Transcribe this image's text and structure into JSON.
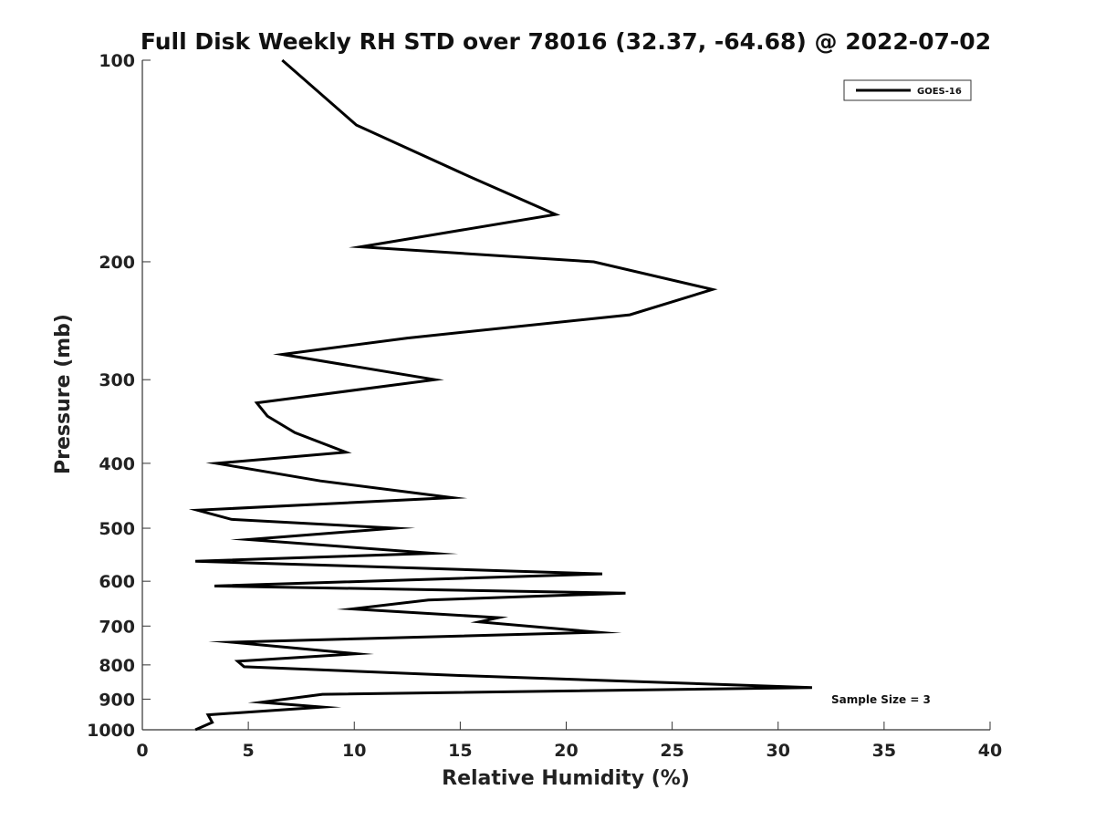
{
  "chart_data": {
    "type": "line",
    "title": "Full Disk Weekly RH STD over 78016 (32.37, -64.68) @ 2022-07-02",
    "xlabel": "Relative Humidity (%)",
    "ylabel": "Pressure (mb)",
    "xlim": [
      0,
      40
    ],
    "ylim": [
      1000,
      100
    ],
    "yscale": "log",
    "y_reversed": true,
    "x_ticks": [
      "0",
      "5",
      "10",
      "15",
      "20",
      "25",
      "30",
      "35",
      "40"
    ],
    "y_ticks": [
      "100",
      "200",
      "300",
      "400",
      "500",
      "600",
      "700",
      "800",
      "900",
      "1000"
    ],
    "grid": false,
    "legend_position": "top-right",
    "annotation": "Sample Size = 3",
    "series": [
      {
        "name": "GOES-16",
        "color": "#000000",
        "x": [
          6.6,
          10.1,
          15.6,
          19.5,
          10.3,
          21.3,
          26.9,
          23.0,
          12.5,
          6.6,
          13.8,
          5.4,
          5.9,
          7.2,
          9.6,
          3.5,
          8.4,
          14.6,
          2.6,
          4.2,
          11.9,
          5.0,
          13.7,
          2.5,
          21.7,
          3.4,
          22.8,
          13.5,
          9.9,
          16.8,
          15.9,
          21.5,
          4.2,
          10.1,
          4.5,
          4.8,
          15.1,
          31.6,
          8.5,
          5.6,
          8.5,
          3.1,
          3.3,
          2.5
        ],
        "y": [
          100,
          125,
          150,
          170,
          190,
          200,
          220,
          240,
          260,
          275,
          300,
          325,
          340,
          360,
          385,
          400,
          425,
          450,
          470,
          485,
          500,
          520,
          545,
          560,
          585,
          610,
          625,
          640,
          660,
          680,
          690,
          715,
          740,
          770,
          790,
          805,
          830,
          865,
          885,
          910,
          925,
          950,
          975,
          1000
        ]
      }
    ]
  }
}
